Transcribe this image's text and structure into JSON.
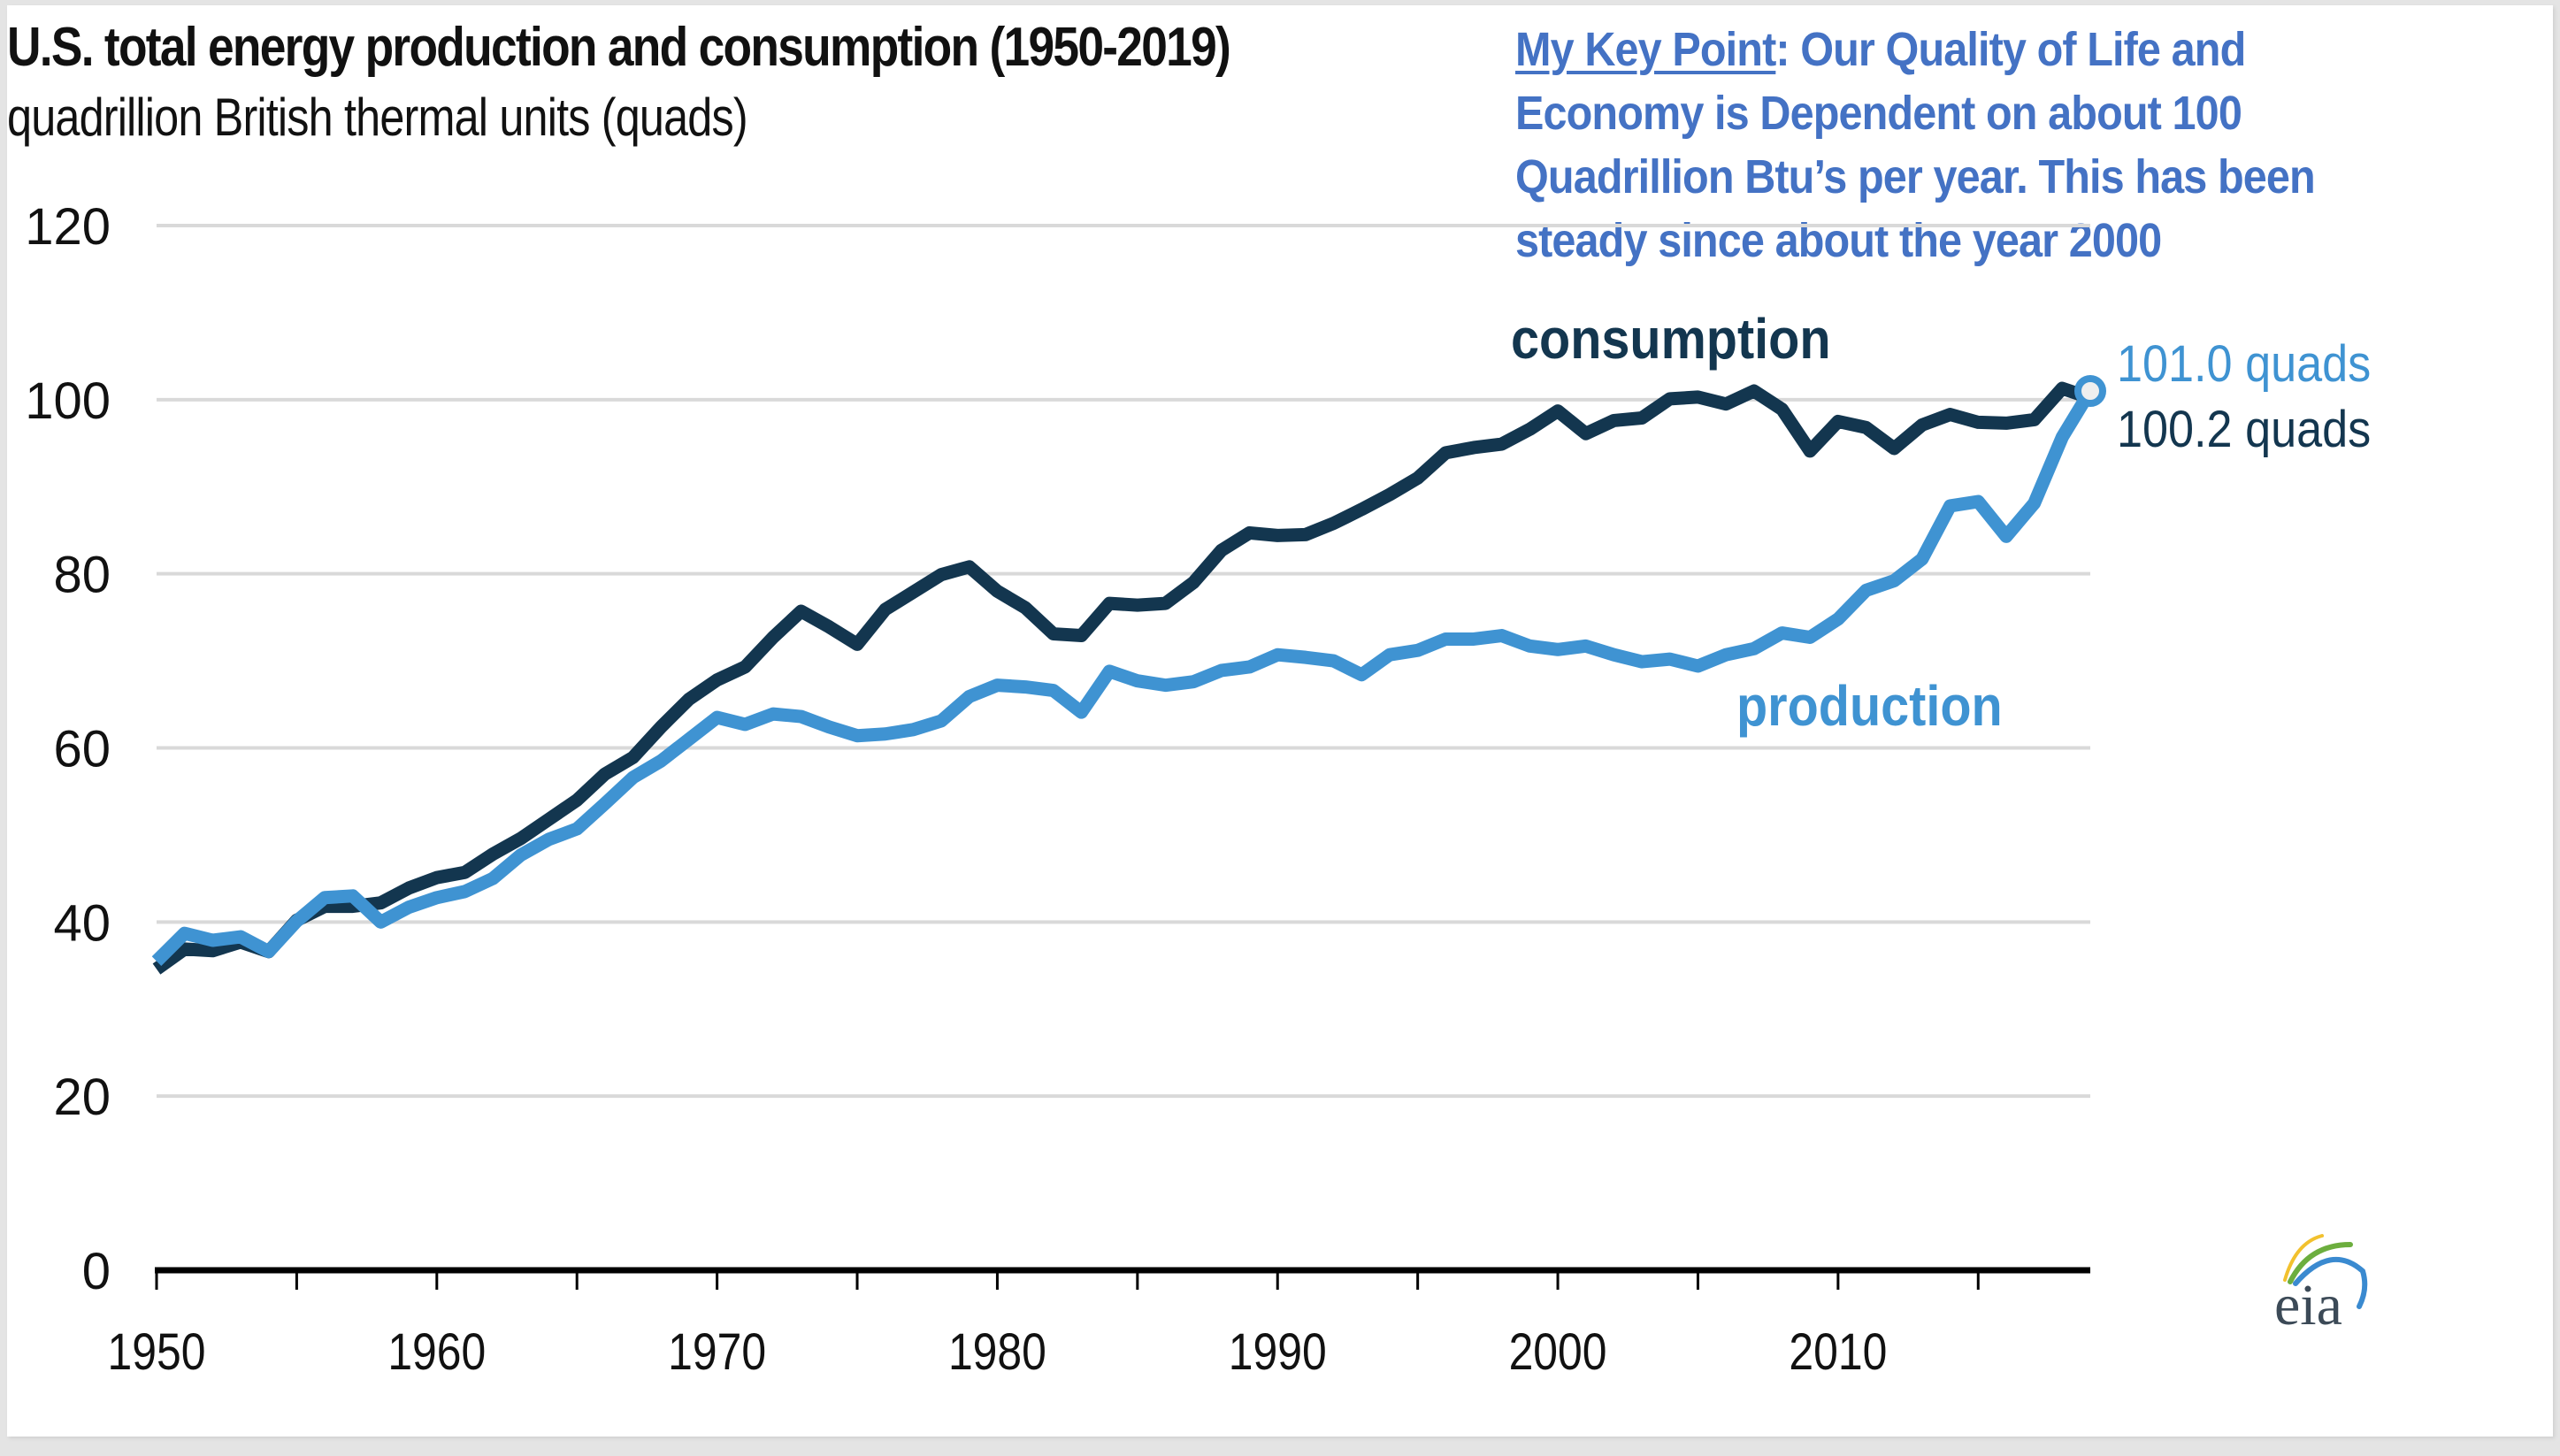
{
  "slide": {
    "title": "U.S. total energy production and consumption (1950-2019)",
    "subtitle": "quadrillion British thermal units (quads)",
    "key_point": {
      "lead": "My Key Point",
      "lines": [
        ": Our Quality of Life and",
        "Economy is Dependent on about 100",
        "Quadrillion Btu’s per year. This has been",
        "steady since about the year 2000"
      ],
      "color": "#4472c4"
    },
    "logo": {
      "text": "eia",
      "icon": "eia-logo-icon"
    }
  },
  "chart_data": {
    "type": "line",
    "title": "U.S. total energy production and consumption (1950-2019)",
    "subtitle": "quadrillion British thermal units (quads)",
    "xlabel": "",
    "ylabel": "quadrillion British thermal units (quads)",
    "xlim": [
      1950,
      2019
    ],
    "ylim": [
      0,
      120
    ],
    "yticks": [
      0,
      20,
      40,
      60,
      80,
      100,
      120
    ],
    "xticks": [
      1950,
      1960,
      1970,
      1980,
      1990,
      2000,
      2010
    ],
    "xtick_labels": [
      "1950",
      "1960",
      "1970",
      "1980",
      "1990",
      "2000",
      "2010"
    ],
    "ytick_labels": [
      "0",
      "20",
      "40",
      "60",
      "80",
      "100",
      "120"
    ],
    "grid": true,
    "legend": "inline labels",
    "x": [
      1950,
      1951,
      1952,
      1953,
      1954,
      1955,
      1956,
      1957,
      1958,
      1959,
      1960,
      1961,
      1962,
      1963,
      1964,
      1965,
      1966,
      1967,
      1968,
      1969,
      1970,
      1971,
      1972,
      1973,
      1974,
      1975,
      1976,
      1977,
      1978,
      1979,
      1980,
      1981,
      1982,
      1983,
      1984,
      1985,
      1986,
      1987,
      1988,
      1989,
      1990,
      1991,
      1992,
      1993,
      1994,
      1995,
      1996,
      1997,
      1998,
      1999,
      2000,
      2001,
      2002,
      2003,
      2004,
      2005,
      2006,
      2007,
      2008,
      2009,
      2010,
      2011,
      2012,
      2013,
      2014,
      2015,
      2016,
      2017,
      2018,
      2019
    ],
    "series": [
      {
        "name": "consumption",
        "label": "consumption",
        "color": "#13364f",
        "end_label": "100.2 quads",
        "values": [
          34.6,
          36.9,
          36.7,
          37.7,
          36.6,
          40.2,
          41.8,
          41.8,
          42.2,
          43.9,
          45.1,
          45.7,
          47.8,
          49.6,
          51.8,
          54.0,
          57.0,
          58.9,
          62.4,
          65.6,
          67.8,
          69.3,
          72.7,
          75.7,
          73.9,
          71.9,
          75.9,
          77.9,
          79.9,
          80.8,
          78.0,
          76.1,
          73.1,
          72.9,
          76.6,
          76.4,
          76.6,
          79.0,
          82.7,
          84.7,
          84.4,
          84.5,
          85.8,
          87.4,
          89.1,
          91.0,
          93.9,
          94.5,
          94.9,
          96.6,
          98.7,
          96.1,
          97.6,
          97.9,
          100.1,
          100.3,
          99.5,
          101.0,
          98.9,
          94.1,
          97.5,
          96.8,
          94.4,
          97.1,
          98.3,
          97.4,
          97.3,
          97.7,
          101.3,
          100.2
        ]
      },
      {
        "name": "production",
        "label": "production",
        "color": "#3f93d2",
        "end_label": "101.0 quads",
        "values": [
          35.5,
          38.7,
          37.9,
          38.3,
          36.6,
          40.1,
          42.8,
          43.0,
          40.0,
          41.7,
          42.8,
          43.5,
          45.0,
          47.7,
          49.5,
          50.7,
          53.6,
          56.6,
          58.5,
          61.0,
          63.5,
          62.7,
          63.9,
          63.6,
          62.4,
          61.4,
          61.6,
          62.1,
          63.1,
          65.9,
          67.2,
          67.0,
          66.6,
          64.1,
          68.8,
          67.7,
          67.2,
          67.6,
          68.9,
          69.3,
          70.7,
          70.4,
          70.0,
          68.4,
          70.7,
          71.2,
          72.5,
          72.5,
          72.9,
          71.7,
          71.3,
          71.7,
          70.7,
          69.9,
          70.2,
          69.4,
          70.7,
          71.4,
          73.2,
          72.7,
          74.8,
          78.1,
          79.2,
          81.7,
          87.8,
          88.3,
          84.3,
          88.1,
          95.7,
          101.0
        ]
      }
    ],
    "annotations": [
      {
        "text": "consumption",
        "series": "consumption"
      },
      {
        "text": "production",
        "series": "production"
      },
      {
        "text": "101.0 quads",
        "series": "production",
        "x": 2019
      },
      {
        "text": "100.2 quads",
        "series": "consumption",
        "x": 2019
      }
    ]
  }
}
